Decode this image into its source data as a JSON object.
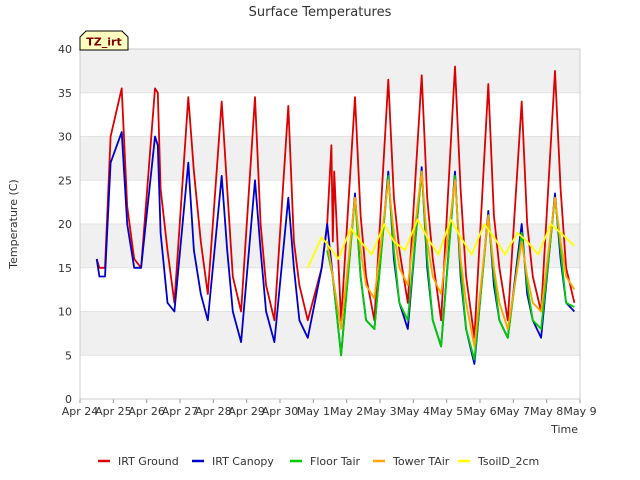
{
  "chart_data": {
    "type": "line",
    "title": "Surface Temperatures",
    "xlabel": "Time",
    "ylabel": "Temperature (C)",
    "site_badge": "TZ_irt",
    "xlim": [
      "Apr 24",
      "May 9"
    ],
    "ylim": [
      0,
      40
    ],
    "x_ticks": [
      "Apr 24",
      "Apr 25",
      "Apr 26",
      "Apr 27",
      "Apr 28",
      "Apr 29",
      "Apr 30",
      "May 1",
      "May 2",
      "May 3",
      "May 4",
      "May 5",
      "May 6",
      "May 7",
      "May 8",
      "May 9"
    ],
    "y_ticks": [
      0,
      5,
      10,
      15,
      20,
      25,
      30,
      35,
      40
    ],
    "grid": "horizontal bands",
    "legend_position": "bottom",
    "series": [
      {
        "name": "IRT Ground",
        "color": "#dd0000",
        "x": [
          "Apr 24 12:00",
          "Apr 24 14:00",
          "Apr 24 18:00",
          "Apr 24 22:00",
          "Apr 25 06:00",
          "Apr 25 10:00",
          "Apr 25 15:00",
          "Apr 25 20:00",
          "Apr 26 06:00",
          "Apr 26 08:00",
          "Apr 26 10:00",
          "Apr 26 15:00",
          "Apr 26 20:00",
          "Apr 27 06:00",
          "Apr 27 10:00",
          "Apr 27 15:00",
          "Apr 27 20:00",
          "Apr 28 06:00",
          "Apr 28 10:00",
          "Apr 28 14:00",
          "Apr 28 20:00",
          "Apr 29 06:00",
          "Apr 29 10:00",
          "Apr 29 14:00",
          "Apr 29 20:00",
          "Apr 30 06:00",
          "Apr 30 10:00",
          "Apr 30 14:00",
          "Apr 30 20:00",
          "May 1 06:00",
          "May 1 10:00",
          "May 1 13:00",
          "May 1 14:00",
          "May 1 15:00",
          "May 1 20:00",
          "May 2 06:00",
          "May 2 10:00",
          "May 2 14:00",
          "May 2 20:00",
          "May 3 06:00",
          "May 3 10:00",
          "May 3 14:00",
          "May 3 20:00",
          "May 4 06:00",
          "May 4 10:00",
          "May 4 14:00",
          "May 4 20:00",
          "May 5 06:00",
          "May 5 10:00",
          "May 5 14:00",
          "May 5 20:00",
          "May 6 06:00",
          "May 6 10:00",
          "May 6 14:00",
          "May 6 20:00",
          "May 7 06:00",
          "May 7 10:00",
          "May 7 14:00",
          "May 7 20:00",
          "May 8 06:00",
          "May 8 10:00",
          "May 8 14:00",
          "May 8 20:00"
        ],
        "values": [
          16,
          15,
          15,
          30,
          35.5,
          22,
          16,
          15,
          35.5,
          35,
          24,
          17,
          11,
          34.5,
          26,
          18,
          12,
          34,
          24,
          14,
          10,
          34.5,
          20,
          13,
          9,
          33.5,
          18,
          13,
          9,
          15,
          20,
          29,
          18,
          26,
          9,
          34.5,
          21,
          14,
          9,
          36.5,
          23,
          17,
          11,
          37,
          23,
          16,
          9,
          38,
          24,
          14,
          7,
          36,
          21,
          15,
          9,
          34,
          20,
          14,
          10,
          37.5,
          24,
          15,
          11
        ]
      },
      {
        "name": "IRT Canopy",
        "color": "#0000cc",
        "x": [
          "Apr 24 12:00",
          "Apr 24 14:00",
          "Apr 24 18:00",
          "Apr 24 22:00",
          "Apr 25 06:00",
          "Apr 25 10:00",
          "Apr 25 15:00",
          "Apr 25 20:00",
          "Apr 26 06:00",
          "Apr 26 08:00",
          "Apr 26 10:00",
          "Apr 26 15:00",
          "Apr 26 20:00",
          "Apr 27 06:00",
          "Apr 27 10:00",
          "Apr 27 15:00",
          "Apr 27 20:00",
          "Apr 28 06:00",
          "Apr 28 10:00",
          "Apr 28 14:00",
          "Apr 28 20:00",
          "Apr 29 06:00",
          "Apr 29 10:00",
          "Apr 29 14:00",
          "Apr 29 20:00",
          "Apr 30 06:00",
          "Apr 30 10:00",
          "Apr 30 14:00",
          "Apr 30 20:00",
          "May 1 06:00",
          "May 1 10:00",
          "May 1 14:00",
          "May 1 20:00",
          "May 2 06:00",
          "May 2 10:00",
          "May 2 14:00",
          "May 2 20:00",
          "May 3 06:00",
          "May 3 10:00",
          "May 3 14:00",
          "May 3 20:00",
          "May 4 06:00",
          "May 4 10:00",
          "May 4 14:00",
          "May 4 20:00",
          "May 5 06:00",
          "May 5 10:00",
          "May 5 14:00",
          "May 5 20:00",
          "May 6 06:00",
          "May 6 10:00",
          "May 6 14:00",
          "May 6 20:00",
          "May 7 06:00",
          "May 7 10:00",
          "May 7 14:00",
          "May 7 20:00",
          "May 8 06:00",
          "May 8 10:00",
          "May 8 14:00",
          "May 8 20:00"
        ],
        "values": [
          16,
          14,
          14,
          27,
          30.5,
          20,
          15,
          15,
          30,
          29,
          19,
          11,
          10,
          27,
          17,
          12,
          9,
          25.5,
          17,
          10,
          6.5,
          25,
          17,
          10,
          6.5,
          23,
          15,
          9,
          7,
          15,
          20,
          14,
          5,
          23.5,
          14,
          9,
          8,
          26,
          16,
          11,
          8,
          26.5,
          15,
          9,
          6,
          26,
          14,
          8,
          4,
          21.5,
          13,
          9,
          7,
          20,
          12,
          9,
          7,
          23.5,
          16,
          11,
          10
        ]
      },
      {
        "name": "Floor Tair",
        "color": "#00cc00",
        "x": [
          "May 1 10:00",
          "May 1 14:00",
          "May 1 20:00",
          "May 2 06:00",
          "May 2 10:00",
          "May 2 14:00",
          "May 2 20:00",
          "May 3 06:00",
          "May 3 10:00",
          "May 3 14:00",
          "May 3 20:00",
          "May 4 06:00",
          "May 4 10:00",
          "May 4 14:00",
          "May 4 20:00",
          "May 5 06:00",
          "May 5 10:00",
          "May 5 14:00",
          "May 5 20:00",
          "May 6 06:00",
          "May 6 10:00",
          "May 6 14:00",
          "May 6 20:00",
          "May 7 06:00",
          "May 7 10:00",
          "May 7 14:00",
          "May 7 20:00",
          "May 8 06:00",
          "May 8 10:00",
          "May 8 14:00",
          "May 8 20:00"
        ],
        "values": [
          17,
          14,
          5,
          23,
          14,
          9,
          8,
          25.5,
          17,
          11,
          9,
          26,
          16,
          9,
          6,
          25.5,
          15,
          8,
          4.5,
          21,
          14,
          9,
          7,
          19,
          13,
          9,
          8,
          23,
          17,
          11,
          10.5
        ]
      },
      {
        "name": "Tower TAir",
        "color": "#ffa500",
        "x": [
          "May 1 10:00",
          "May 1 14:00",
          "May 1 20:00",
          "May 2 06:00",
          "May 2 10:00",
          "May 2 14:00",
          "May 2 20:00",
          "May 3 06:00",
          "May 3 10:00",
          "May 3 14:00",
          "May 3 20:00",
          "May 4 06:00",
          "May 4 10:00",
          "May 4 14:00",
          "May 4 20:00",
          "May 5 06:00",
          "May 5 10:00",
          "May 5 14:00",
          "May 5 20:00",
          "May 6 06:00",
          "May 6 10:00",
          "May 6 14:00",
          "May 6 20:00",
          "May 7 06:00",
          "May 7 10:00",
          "May 7 14:00",
          "May 7 20:00",
          "May 8 06:00",
          "May 8 10:00",
          "May 8 14:00",
          "May 8 20:00"
        ],
        "values": [
          18,
          14,
          8,
          23,
          17,
          13,
          11.5,
          25,
          19,
          15,
          13,
          26,
          18,
          14,
          12,
          25,
          16,
          11,
          6,
          21,
          15,
          11,
          8,
          18,
          14,
          11,
          10,
          23,
          18,
          14,
          12.5
        ]
      },
      {
        "name": "TsoilD_2cm",
        "color": "#ffff00",
        "x": [
          "Apr 30 20:00",
          "May 1 06:00",
          "May 1 18:00",
          "May 2 03:00",
          "May 2 10:00",
          "May 2 18:00",
          "May 3 03:00",
          "May 3 10:00",
          "May 3 18:00",
          "May 4 03:00",
          "May 4 10:00",
          "May 4 18:00",
          "May 5 03:00",
          "May 5 10:00",
          "May 5 18:00",
          "May 6 03:00",
          "May 6 10:00",
          "May 6 18:00",
          "May 7 03:00",
          "May 7 10:00",
          "May 7 18:00",
          "May 8 03:00",
          "May 8 10:00",
          "May 8 20:00"
        ],
        "values": [
          15,
          18.5,
          16,
          19.5,
          18,
          16.5,
          20,
          18,
          17,
          20.5,
          18.5,
          16.5,
          20.5,
          18.5,
          16.5,
          20,
          18.5,
          16.5,
          19,
          18,
          16.5,
          20,
          19,
          17.5
        ]
      }
    ]
  }
}
